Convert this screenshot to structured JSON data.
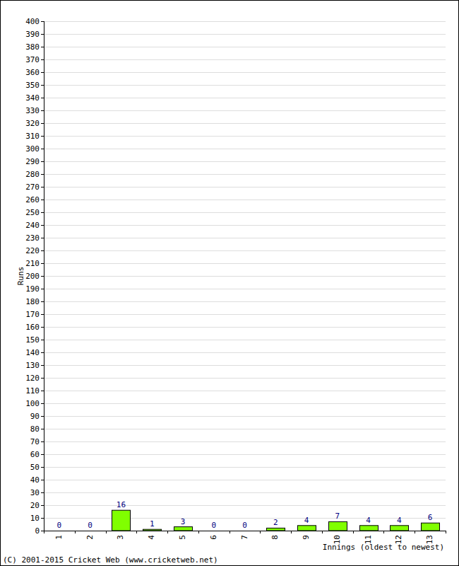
{
  "chart_data": {
    "type": "bar",
    "xlabel": "Innings (oldest to newest)",
    "ylabel": "Runs",
    "annotations": [
      "(C) 2001-2015 Cricket Web (www.cricketweb.net)"
    ],
    "categories": [
      "1",
      "2",
      "3",
      "4",
      "5",
      "6",
      "7",
      "8",
      "9",
      "10",
      "11",
      "12",
      "13"
    ],
    "values": [
      0,
      0,
      16,
      1,
      3,
      0,
      0,
      2,
      4,
      7,
      4,
      4,
      6
    ],
    "color": "#80ff00",
    "ylim": [
      0,
      400
    ],
    "yticks": [
      0,
      10,
      20,
      30,
      40,
      50,
      60,
      70,
      80,
      90,
      100,
      110,
      120,
      130,
      140,
      150,
      160,
      170,
      180,
      190,
      200,
      210,
      220,
      230,
      240,
      250,
      260,
      270,
      280,
      290,
      300,
      310,
      320,
      330,
      340,
      350,
      360,
      370,
      380,
      390,
      400
    ],
    "grid": true,
    "data_labels": true
  }
}
